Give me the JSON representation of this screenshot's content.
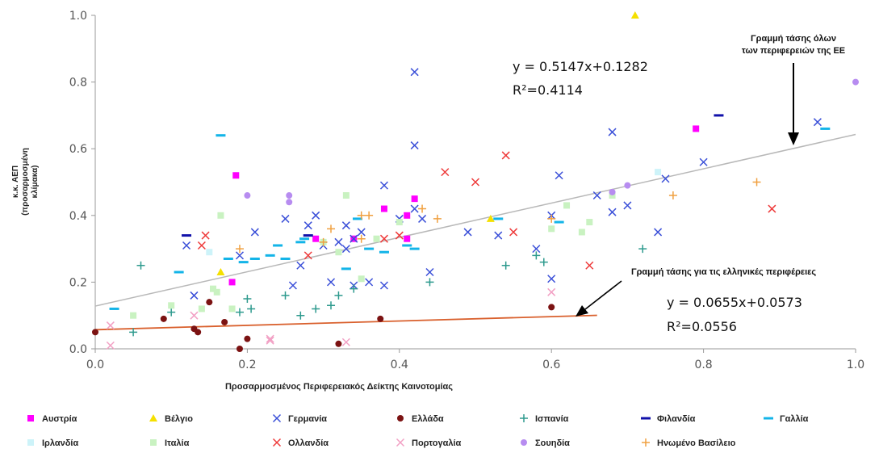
{
  "chart_data": {
    "type": "scatter",
    "title": "",
    "xlabel": "Προσαρμοσμένος Περιφερειακός Δείκτης Καινοτομίας",
    "ylabel_lines": [
      "κ.κ. ΑΕΠ",
      "(προσαρμοσμένη",
      "κλίμακα)"
    ],
    "xlim": [
      0,
      1
    ],
    "ylim": [
      0,
      1
    ],
    "x_ticks": [
      "0.0",
      "0.2",
      "0.4",
      "0.6",
      "0.8",
      "1.0"
    ],
    "y_ticks": [
      "0.0",
      "0.2",
      "0.4",
      "0.6",
      "0.8",
      "1.0"
    ],
    "grid": false,
    "legend_position": "bottom",
    "series": [
      {
        "name": "Αυστρία",
        "marker": "square",
        "color": "#ff00ff",
        "points": [
          [
            0.185,
            0.52
          ],
          [
            0.18,
            0.2
          ],
          [
            0.29,
            0.33
          ],
          [
            0.38,
            0.42
          ],
          [
            0.34,
            0.33
          ],
          [
            0.42,
            0.45
          ],
          [
            0.41,
            0.33
          ],
          [
            0.41,
            0.4
          ],
          [
            0.79,
            0.66
          ]
        ]
      },
      {
        "name": "Βέλγιο",
        "marker": "triangle",
        "color": "#f5e000",
        "points": [
          [
            0.165,
            0.23
          ],
          [
            0.52,
            0.39
          ],
          [
            0.71,
            1.0
          ]
        ]
      },
      {
        "name": "Γερμανία",
        "marker": "x",
        "color": "#3a4fd8",
        "points": [
          [
            0.12,
            0.31
          ],
          [
            0.13,
            0.16
          ],
          [
            0.19,
            0.28
          ],
          [
            0.21,
            0.35
          ],
          [
            0.25,
            0.39
          ],
          [
            0.26,
            0.19
          ],
          [
            0.27,
            0.25
          ],
          [
            0.28,
            0.37
          ],
          [
            0.29,
            0.4
          ],
          [
            0.3,
            0.31
          ],
          [
            0.31,
            0.2
          ],
          [
            0.32,
            0.32
          ],
          [
            0.33,
            0.3
          ],
          [
            0.33,
            0.37
          ],
          [
            0.34,
            0.33
          ],
          [
            0.35,
            0.35
          ],
          [
            0.34,
            0.19
          ],
          [
            0.36,
            0.2
          ],
          [
            0.38,
            0.49
          ],
          [
            0.38,
            0.19
          ],
          [
            0.4,
            0.39
          ],
          [
            0.42,
            0.42
          ],
          [
            0.42,
            0.61
          ],
          [
            0.43,
            0.39
          ],
          [
            0.44,
            0.23
          ],
          [
            0.42,
            0.83
          ],
          [
            0.49,
            0.35
          ],
          [
            0.53,
            0.34
          ],
          [
            0.6,
            0.4
          ],
          [
            0.6,
            0.21
          ],
          [
            0.61,
            0.52
          ],
          [
            0.66,
            0.46
          ],
          [
            0.68,
            0.41
          ],
          [
            0.68,
            0.65
          ],
          [
            0.7,
            0.43
          ],
          [
            0.74,
            0.35
          ],
          [
            0.75,
            0.51
          ],
          [
            0.8,
            0.56
          ],
          [
            0.95,
            0.68
          ],
          [
            0.58,
            0.3
          ]
        ]
      },
      {
        "name": "Ελλάδα",
        "marker": "circle",
        "color": "#7b1212",
        "points": [
          [
            0.0,
            0.05
          ],
          [
            0.09,
            0.09
          ],
          [
            0.13,
            0.06
          ],
          [
            0.135,
            0.05
          ],
          [
            0.15,
            0.14
          ],
          [
            0.17,
            0.08
          ],
          [
            0.19,
            0.0
          ],
          [
            0.2,
            0.03
          ],
          [
            0.32,
            0.015
          ],
          [
            0.375,
            0.09
          ],
          [
            0.6,
            0.125
          ]
        ]
      },
      {
        "name": "Ισπανία",
        "marker": "plus",
        "color": "#2e9a8e",
        "points": [
          [
            0.06,
            0.25
          ],
          [
            0.05,
            0.05
          ],
          [
            0.1,
            0.11
          ],
          [
            0.19,
            0.11
          ],
          [
            0.2,
            0.15
          ],
          [
            0.205,
            0.12
          ],
          [
            0.25,
            0.16
          ],
          [
            0.27,
            0.1
          ],
          [
            0.29,
            0.12
          ],
          [
            0.31,
            0.13
          ],
          [
            0.32,
            0.16
          ],
          [
            0.34,
            0.18
          ],
          [
            0.44,
            0.2
          ],
          [
            0.54,
            0.25
          ],
          [
            0.58,
            0.28
          ],
          [
            0.59,
            0.26
          ],
          [
            0.72,
            0.3
          ]
        ]
      },
      {
        "name": "Φιλανδία",
        "marker": "dash",
        "color": "#1111aa",
        "points": [
          [
            0.12,
            0.34
          ],
          [
            0.28,
            0.34
          ],
          [
            0.82,
            0.7
          ]
        ]
      },
      {
        "name": "Γαλλία",
        "marker": "dash",
        "color": "#13b4e8",
        "points": [
          [
            0.025,
            0.12
          ],
          [
            0.11,
            0.23
          ],
          [
            0.165,
            0.64
          ],
          [
            0.175,
            0.27
          ],
          [
            0.195,
            0.26
          ],
          [
            0.21,
            0.27
          ],
          [
            0.23,
            0.28
          ],
          [
            0.24,
            0.31
          ],
          [
            0.25,
            0.27
          ],
          [
            0.27,
            0.32
          ],
          [
            0.275,
            0.33
          ],
          [
            0.33,
            0.24
          ],
          [
            0.345,
            0.39
          ],
          [
            0.36,
            0.3
          ],
          [
            0.38,
            0.29
          ],
          [
            0.41,
            0.31
          ],
          [
            0.42,
            0.3
          ],
          [
            0.53,
            0.39
          ],
          [
            0.61,
            0.38
          ],
          [
            0.96,
            0.66
          ]
        ]
      },
      {
        "name": "Ιρλανδία",
        "marker": "square",
        "color": "#cdf3f9",
        "points": [
          [
            0.15,
            0.29
          ],
          [
            0.74,
            0.53
          ]
        ]
      },
      {
        "name": "Ιταλία",
        "marker": "square",
        "color": "#c9f2c1",
        "points": [
          [
            0.05,
            0.1
          ],
          [
            0.1,
            0.13
          ],
          [
            0.14,
            0.12
          ],
          [
            0.155,
            0.18
          ],
          [
            0.16,
            0.17
          ],
          [
            0.165,
            0.4
          ],
          [
            0.18,
            0.12
          ],
          [
            0.3,
            0.32
          ],
          [
            0.32,
            0.29
          ],
          [
            0.33,
            0.46
          ],
          [
            0.35,
            0.21
          ],
          [
            0.37,
            0.33
          ],
          [
            0.4,
            0.38
          ],
          [
            0.6,
            0.36
          ],
          [
            0.62,
            0.43
          ],
          [
            0.64,
            0.35
          ],
          [
            0.65,
            0.38
          ],
          [
            0.68,
            0.46
          ]
        ]
      },
      {
        "name": "Ολλανδία",
        "marker": "x",
        "color": "#ee3a3a",
        "points": [
          [
            0.14,
            0.31
          ],
          [
            0.145,
            0.34
          ],
          [
            0.28,
            0.28
          ],
          [
            0.38,
            0.33
          ],
          [
            0.4,
            0.34
          ],
          [
            0.46,
            0.53
          ],
          [
            0.5,
            0.5
          ],
          [
            0.54,
            0.58
          ],
          [
            0.55,
            0.35
          ],
          [
            0.65,
            0.25
          ],
          [
            0.89,
            0.42
          ]
        ]
      },
      {
        "name": "Πορτογαλία",
        "marker": "x",
        "color": "#f2a0c4",
        "points": [
          [
            0.02,
            0.01
          ],
          [
            0.02,
            0.07
          ],
          [
            0.13,
            0.1
          ],
          [
            0.23,
            0.025
          ],
          [
            0.23,
            0.03
          ],
          [
            0.33,
            0.02
          ],
          [
            0.6,
            0.17
          ]
        ]
      },
      {
        "name": "Σουηδία",
        "marker": "circle",
        "color": "#b78cf0",
        "points": [
          [
            0.2,
            0.46
          ],
          [
            0.255,
            0.46
          ],
          [
            0.255,
            0.44
          ],
          [
            0.68,
            0.47
          ],
          [
            0.7,
            0.49
          ],
          [
            1.0,
            0.8
          ]
        ]
      },
      {
        "name": "Ηνωμένο Βασίλειο",
        "marker": "plus",
        "color": "#f0a040",
        "points": [
          [
            0.19,
            0.3
          ],
          [
            0.3,
            0.32
          ],
          [
            0.31,
            0.36
          ],
          [
            0.35,
            0.33
          ],
          [
            0.35,
            0.4
          ],
          [
            0.36,
            0.4
          ],
          [
            0.43,
            0.42
          ],
          [
            0.45,
            0.39
          ],
          [
            0.6,
            0.39
          ],
          [
            0.76,
            0.46
          ],
          [
            0.87,
            0.5
          ]
        ]
      }
    ],
    "trendlines": [
      {
        "id": "eu",
        "slope": 0.5147,
        "intercept": 0.1282,
        "x_range": [
          0,
          1
        ],
        "color": "#b8b8b8",
        "equation": "y = 0.5147x+0.1282",
        "r2": "R²=0.4114",
        "annotation": [
          "Γραμμή τάσης όλων",
          "των περιφερειών της ΕΕ"
        ]
      },
      {
        "id": "greece",
        "slope": 0.0655,
        "intercept": 0.0573,
        "x_range": [
          0,
          0.66
        ],
        "color": "#d9602d",
        "equation": "y = 0.0655x+0.0573",
        "r2": "R²=0.0556",
        "annotation": [
          "Γραμμή τάσης για τις ελληνικές περιφέρειες"
        ]
      }
    ]
  }
}
